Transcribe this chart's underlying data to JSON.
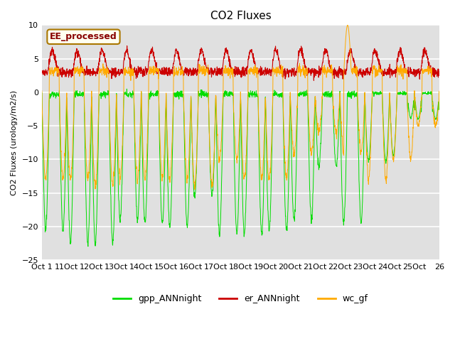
{
  "title": "CO2 Fluxes",
  "ylabel": "CO2 Fluxes (urology/m2/s)",
  "ylim": [
    -25,
    10
  ],
  "yticks": [
    -25,
    -20,
    -15,
    -10,
    -5,
    0,
    5,
    10
  ],
  "xtick_labels": [
    "Oct 1",
    "11Oct",
    "12Oct",
    "13Oct",
    "14Oct",
    "15Oct",
    "16Oct",
    "17Oct",
    "18Oct",
    "19Oct",
    "20Oct",
    "21Oct",
    "22Oct",
    "23Oct",
    "24Oct",
    "25Oct",
    "26"
  ],
  "bg_color": "#e0e0e0",
  "fig_bg": "#ffffff",
  "line_green": "#00dd00",
  "line_red": "#cc0000",
  "line_orange": "#ffaa00",
  "legend_box_text": "EE_processed",
  "legend_box_bg": "#fffff0",
  "legend_box_edge": "#aa7700",
  "legend_items": [
    "gpp_ANNnight",
    "er_ANNnight",
    "wc_gf"
  ],
  "n_days": 16,
  "n_pts_per_day": 120
}
